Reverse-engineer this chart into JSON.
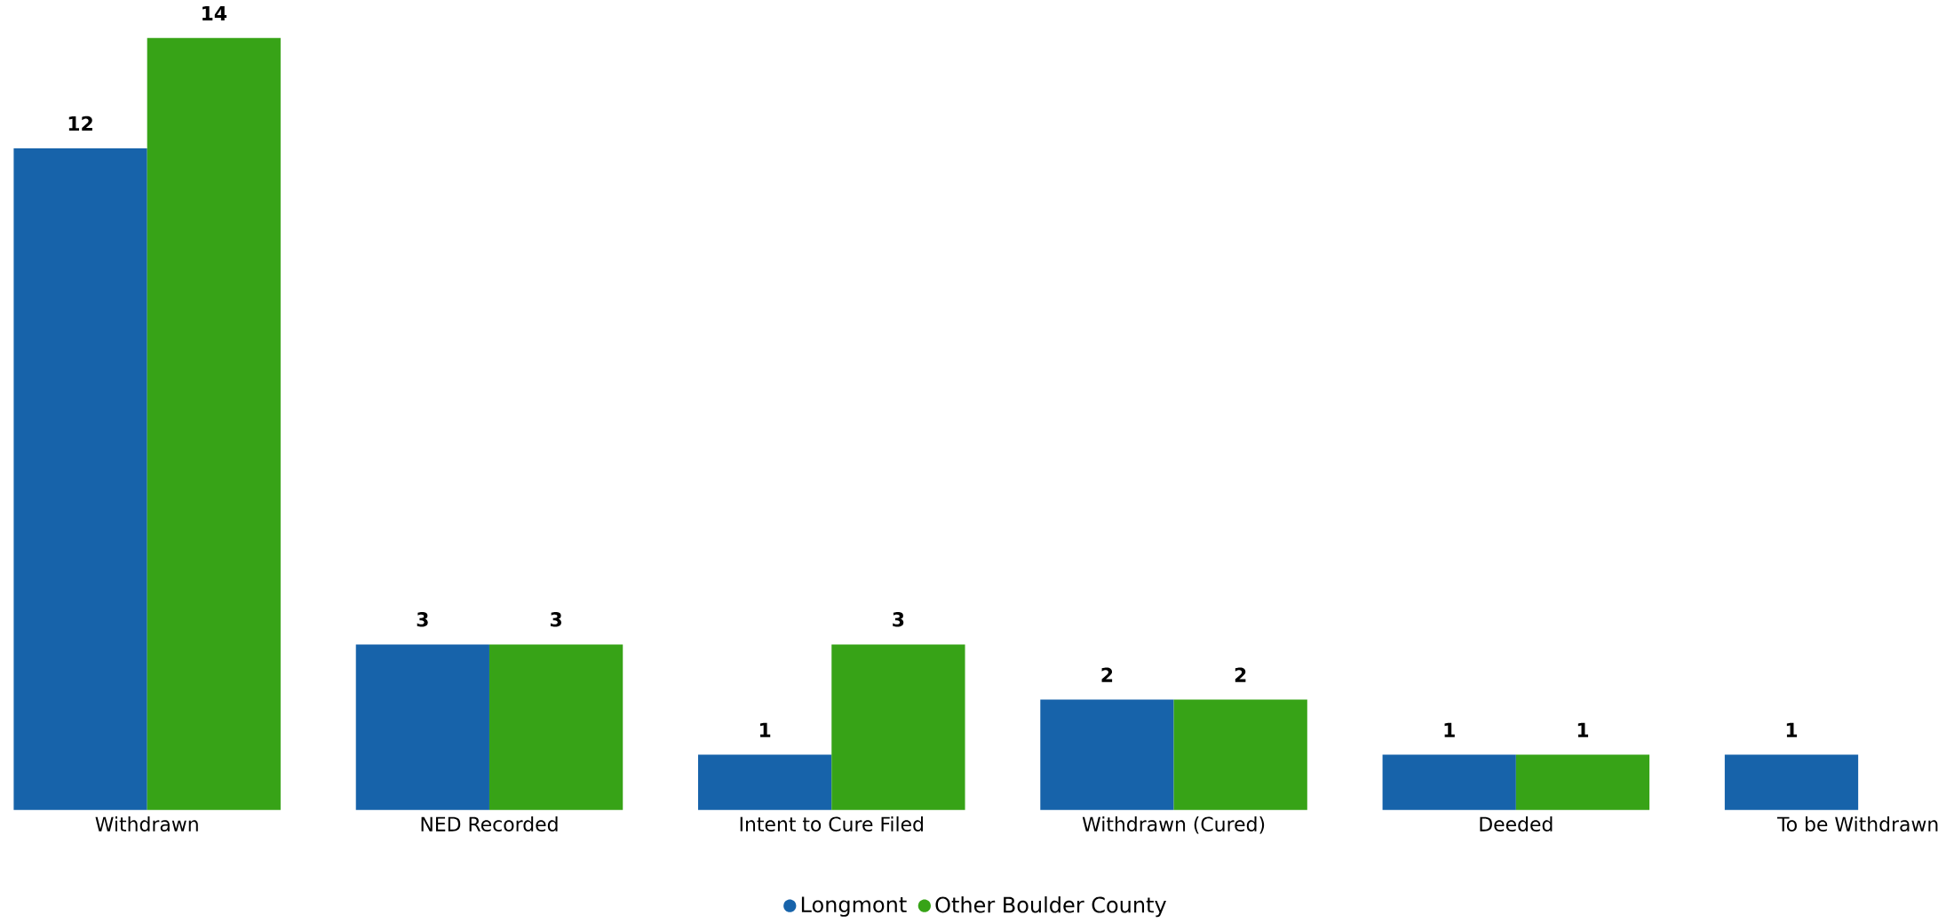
{
  "chart_data": {
    "type": "bar",
    "categories": [
      "Withdrawn",
      "NED Recorded",
      "Intent to Cure Filed",
      "Withdrawn (Cured)",
      "Deeded",
      "To be Withdrawn"
    ],
    "series": [
      {
        "name": "Longmont",
        "color": "#1763aa",
        "values": [
          12,
          3,
          1,
          2,
          1,
          1
        ]
      },
      {
        "name": "Other Boulder County",
        "color": "#37a317",
        "values": [
          14,
          3,
          3,
          2,
          1,
          null
        ]
      }
    ],
    "data_labels": true,
    "legend": "bottom"
  }
}
